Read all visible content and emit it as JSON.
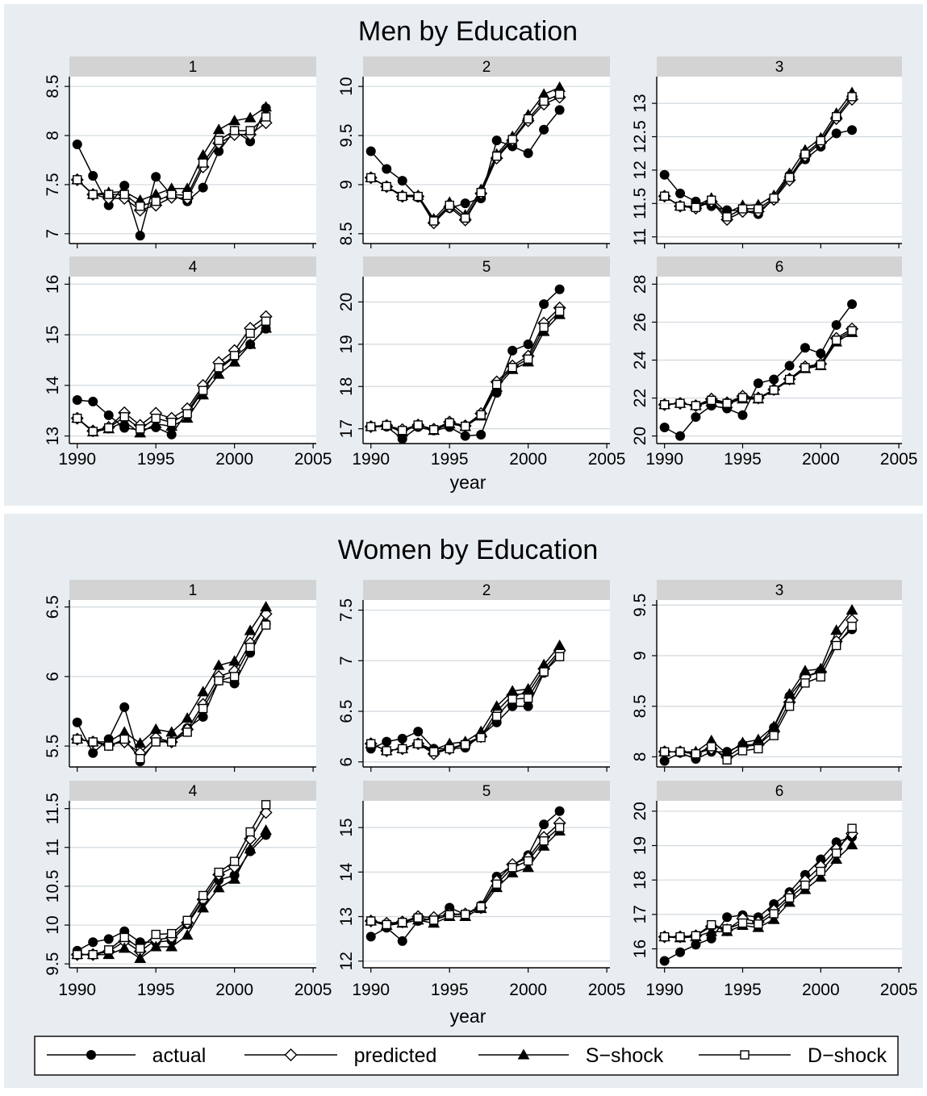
{
  "chart_data": {
    "type": "line",
    "x": [
      1990,
      1991,
      1992,
      1993,
      1994,
      1995,
      1996,
      1997,
      1998,
      1999,
      2000,
      2001,
      2002
    ],
    "xticks": [
      1990,
      1995,
      2000,
      2005
    ],
    "xlim": [
      1989.5,
      2005.2
    ],
    "series_names": [
      "actual",
      "predicted",
      "S−shock",
      "D−shock"
    ],
    "groups": [
      {
        "title": "Men by Education",
        "xlabel": "year",
        "panels": [
          {
            "label": "1",
            "ylim": [
              6.9,
              8.6
            ],
            "yticks": [
              "7",
              "7.5",
              "8",
              "8.5"
            ],
            "series": [
              [
                7.91,
                7.59,
                7.29,
                7.49,
                6.98,
                7.58,
                7.39,
                7.33,
                7.47,
                7.84,
                8.05,
                7.94,
                8.28
              ],
              [
                7.55,
                7.4,
                7.36,
                7.36,
                7.24,
                7.29,
                7.37,
                7.36,
                7.68,
                7.92,
                8.01,
                8.01,
                8.13
              ],
              [
                7.55,
                7.4,
                7.42,
                7.43,
                7.34,
                7.4,
                7.46,
                7.46,
                7.8,
                8.06,
                8.15,
                8.18,
                8.29
              ],
              [
                7.55,
                7.4,
                7.4,
                7.4,
                7.28,
                7.33,
                7.4,
                7.39,
                7.72,
                7.95,
                8.05,
                8.05,
                8.19
              ]
            ]
          },
          {
            "label": "2",
            "ylim": [
              8.4,
              10.1
            ],
            "yticks": [
              "8.5",
              "9",
              "9.5",
              "10"
            ],
            "series": [
              [
                9.34,
                9.16,
                9.04,
                8.87,
                8.64,
                8.76,
                8.81,
                8.86,
                9.45,
                9.39,
                9.32,
                9.56,
                9.76
              ],
              [
                9.07,
                8.98,
                8.88,
                8.88,
                8.61,
                8.77,
                8.64,
                8.91,
                9.27,
                9.45,
                9.65,
                9.82,
                9.89
              ],
              [
                9.07,
                8.98,
                8.89,
                8.89,
                8.65,
                8.82,
                8.69,
                8.95,
                9.31,
                9.49,
                9.71,
                9.92,
                9.99
              ],
              [
                9.07,
                8.98,
                8.88,
                8.88,
                8.63,
                8.79,
                8.66,
                8.92,
                9.29,
                9.46,
                9.67,
                9.85,
                9.92
              ]
            ]
          },
          {
            "label": "3",
            "ylim": [
              10.9,
              13.4
            ],
            "yticks": [
              "11",
              "11.5",
              "12",
              "12.5",
              "13"
            ],
            "series": [
              [
                11.93,
                11.65,
                11.53,
                11.46,
                11.4,
                11.39,
                11.34,
                11.58,
                11.92,
                12.16,
                12.35,
                12.55,
                12.6
              ],
              [
                11.61,
                11.46,
                11.43,
                11.53,
                11.26,
                11.38,
                11.38,
                11.56,
                11.85,
                12.21,
                12.41,
                12.77,
                13.06
              ],
              [
                11.61,
                11.46,
                11.46,
                11.58,
                11.36,
                11.47,
                11.48,
                11.62,
                11.95,
                12.3,
                12.48,
                12.85,
                13.16
              ],
              [
                11.61,
                11.46,
                11.44,
                11.55,
                11.3,
                11.42,
                11.42,
                11.58,
                11.89,
                12.24,
                12.44,
                12.8,
                13.1
              ]
            ]
          },
          {
            "label": "4",
            "ylim": [
              12.85,
              16.15
            ],
            "yticks": [
              "13",
              "14",
              "15",
              "16"
            ],
            "series": [
              [
                13.71,
                13.68,
                13.41,
                13.16,
                13.12,
                13.17,
                13.03,
                13.48,
                13.95,
                14.32,
                14.56,
                14.81,
                15.12
              ],
              [
                13.35,
                13.1,
                13.17,
                13.46,
                13.21,
                13.45,
                13.35,
                13.54,
                14.0,
                14.45,
                14.69,
                15.13,
                15.36
              ],
              [
                13.35,
                13.08,
                13.14,
                13.28,
                13.06,
                13.24,
                13.19,
                13.35,
                13.81,
                14.22,
                14.46,
                14.81,
                15.13
              ],
              [
                13.35,
                13.09,
                13.16,
                13.38,
                13.14,
                13.35,
                13.27,
                13.44,
                13.9,
                14.35,
                14.59,
                15.03,
                15.27
              ]
            ]
          },
          {
            "label": "5",
            "ylim": [
              16.65,
              20.6
            ],
            "yticks": [
              "17",
              "18",
              "19",
              "20"
            ],
            "series": [
              [
                17.05,
                17.05,
                16.76,
                17.04,
                16.96,
                17.04,
                16.83,
                16.86,
                17.85,
                18.85,
                19.0,
                19.95,
                20.3
              ],
              [
                17.05,
                17.08,
                16.98,
                17.09,
                16.99,
                17.16,
                17.07,
                17.36,
                18.11,
                18.49,
                18.72,
                19.5,
                19.86
              ],
              [
                17.05,
                17.08,
                16.92,
                17.1,
                16.96,
                17.12,
                17.05,
                17.3,
                17.98,
                18.4,
                18.58,
                19.3,
                19.7
              ],
              [
                17.05,
                17.08,
                16.96,
                17.09,
                16.98,
                17.14,
                17.06,
                17.33,
                18.05,
                18.45,
                18.65,
                19.4,
                19.78
              ]
            ]
          },
          {
            "label": "6",
            "ylim": [
              19.6,
              28.4
            ],
            "yticks": [
              "20",
              "22",
              "24",
              "26",
              "28"
            ],
            "series": [
              [
                20.45,
                20.0,
                21.0,
                21.6,
                21.45,
                21.1,
                22.78,
                22.98,
                23.7,
                24.65,
                24.35,
                25.85,
                26.95
              ],
              [
                21.65,
                21.72,
                21.6,
                21.95,
                21.75,
                22.1,
                22.0,
                22.45,
                23.0,
                23.65,
                23.8,
                25.15,
                25.65
              ],
              [
                21.65,
                21.72,
                21.6,
                21.8,
                21.7,
                21.95,
                21.95,
                22.4,
                22.95,
                23.55,
                23.7,
                24.95,
                25.45
              ],
              [
                21.65,
                21.72,
                21.6,
                21.88,
                21.72,
                22.02,
                21.98,
                22.42,
                22.98,
                23.6,
                23.75,
                25.05,
                25.55
              ]
            ]
          }
        ]
      },
      {
        "title": "Women by Education",
        "xlabel": "year",
        "panels": [
          {
            "label": "1",
            "ylim": [
              5.35,
              6.55
            ],
            "yticks": [
              "5.5",
              "6",
              "6.5"
            ],
            "series": [
              [
                5.67,
                5.45,
                5.55,
                5.78,
                5.39,
                5.54,
                5.53,
                5.63,
                5.71,
                5.97,
                5.95,
                6.17,
                6.38
              ],
              [
                5.55,
                5.53,
                5.51,
                5.53,
                5.45,
                5.56,
                5.53,
                5.62,
                5.8,
                6.0,
                6.04,
                6.24,
                6.45
              ],
              [
                5.55,
                5.53,
                5.53,
                5.6,
                5.52,
                5.62,
                5.6,
                5.7,
                5.89,
                6.08,
                6.11,
                6.33,
                6.5
              ],
              [
                5.55,
                5.53,
                5.5,
                5.55,
                5.41,
                5.53,
                5.53,
                5.6,
                5.77,
                5.97,
                6.0,
                6.21,
                6.37
              ]
            ]
          },
          {
            "label": "2",
            "ylim": [
              5.95,
              7.6
            ],
            "yticks": [
              "6",
              "6.5",
              "7",
              "7.5"
            ],
            "series": [
              [
                6.13,
                6.2,
                6.23,
                6.3,
                6.13,
                6.13,
                6.14,
                6.26,
                6.39,
                6.55,
                6.55,
                6.88,
                7.08
              ],
              [
                6.18,
                6.11,
                6.13,
                6.18,
                6.08,
                6.13,
                6.18,
                6.25,
                6.5,
                6.66,
                6.68,
                6.92,
                7.1
              ],
              [
                6.18,
                6.11,
                6.13,
                6.18,
                6.12,
                6.18,
                6.2,
                6.3,
                6.55,
                6.7,
                6.72,
                6.96,
                7.15
              ],
              [
                6.18,
                6.11,
                6.13,
                6.18,
                6.1,
                6.13,
                6.17,
                6.24,
                6.45,
                6.62,
                6.63,
                6.89,
                7.04
              ]
            ]
          },
          {
            "label": "3",
            "ylim": [
              7.9,
              9.55
            ],
            "yticks": [
              "8",
              "8.5",
              "9",
              "9.5"
            ],
            "series": [
              [
                7.96,
                8.04,
                7.98,
                8.05,
                8.05,
                8.12,
                8.12,
                8.29,
                8.6,
                8.79,
                8.85,
                9.12,
                9.26
              ],
              [
                8.05,
                8.05,
                8.03,
                8.08,
                8.0,
                8.1,
                8.12,
                8.25,
                8.54,
                8.79,
                8.84,
                9.14,
                9.35
              ],
              [
                8.05,
                8.05,
                8.05,
                8.16,
                8.03,
                8.14,
                8.17,
                8.3,
                8.62,
                8.85,
                8.87,
                9.25,
                9.45
              ],
              [
                8.05,
                8.05,
                8.03,
                8.1,
                7.97,
                8.06,
                8.08,
                8.21,
                8.5,
                8.73,
                8.79,
                9.1,
                9.29
              ]
            ]
          },
          {
            "label": "4",
            "ylim": [
              9.45,
              11.6
            ],
            "yticks": [
              "9.5",
              "10",
              "10.5",
              "11",
              "11.5"
            ],
            "series": [
              [
                9.67,
                9.78,
                9.82,
                9.92,
                9.78,
                9.78,
                9.8,
                10.01,
                10.31,
                10.58,
                10.64,
                10.95,
                11.16
              ],
              [
                9.62,
                9.62,
                9.66,
                9.79,
                9.66,
                9.81,
                9.84,
                10.03,
                10.33,
                10.65,
                10.75,
                11.11,
                11.45
              ],
              [
                9.62,
                9.62,
                9.62,
                9.7,
                9.57,
                9.72,
                9.72,
                9.87,
                10.22,
                10.48,
                10.59,
                10.98,
                11.22
              ],
              [
                9.62,
                9.62,
                9.68,
                9.84,
                9.7,
                9.88,
                9.89,
                10.06,
                10.38,
                10.68,
                10.82,
                11.2,
                11.55
              ]
            ]
          },
          {
            "label": "5",
            "ylim": [
              11.85,
              15.6
            ],
            "yticks": [
              "12",
              "13",
              "14",
              "15"
            ],
            "series": [
              [
                12.55,
                12.75,
                12.45,
                12.9,
                12.95,
                13.2,
                13.05,
                13.25,
                13.9,
                14.15,
                14.38,
                15.07,
                15.37
              ],
              [
                12.9,
                12.85,
                12.88,
                13.0,
                12.98,
                13.05,
                13.06,
                13.2,
                13.8,
                14.17,
                14.32,
                14.78,
                15.1
              ],
              [
                12.9,
                12.8,
                12.85,
                12.92,
                12.85,
                13.0,
                13.0,
                13.18,
                13.65,
                13.98,
                14.1,
                14.58,
                14.92
              ],
              [
                12.9,
                12.82,
                12.87,
                12.97,
                12.92,
                13.04,
                13.05,
                13.22,
                13.73,
                14.1,
                14.25,
                14.7,
                15.0
              ]
            ]
          },
          {
            "label": "6",
            "ylim": [
              15.45,
              20.3
            ],
            "yticks": [
              "16",
              "17",
              "18",
              "19",
              "20"
            ],
            "series": [
              [
                15.65,
                15.9,
                16.12,
                16.3,
                16.92,
                16.98,
                16.92,
                17.3,
                17.65,
                18.15,
                18.6,
                19.1,
                19.25
              ],
              [
                16.35,
                16.35,
                16.38,
                16.65,
                16.55,
                16.88,
                16.78,
                17.12,
                17.55,
                17.98,
                18.4,
                18.9,
                19.35
              ],
              [
                16.35,
                16.32,
                16.35,
                16.5,
                16.5,
                16.68,
                16.62,
                16.85,
                17.35,
                17.72,
                18.08,
                18.6,
                19.02
              ],
              [
                16.35,
                16.35,
                16.38,
                16.7,
                16.58,
                16.75,
                16.72,
                17.02,
                17.48,
                17.85,
                18.25,
                18.78,
                19.5
              ]
            ]
          }
        ]
      }
    ]
  }
}
